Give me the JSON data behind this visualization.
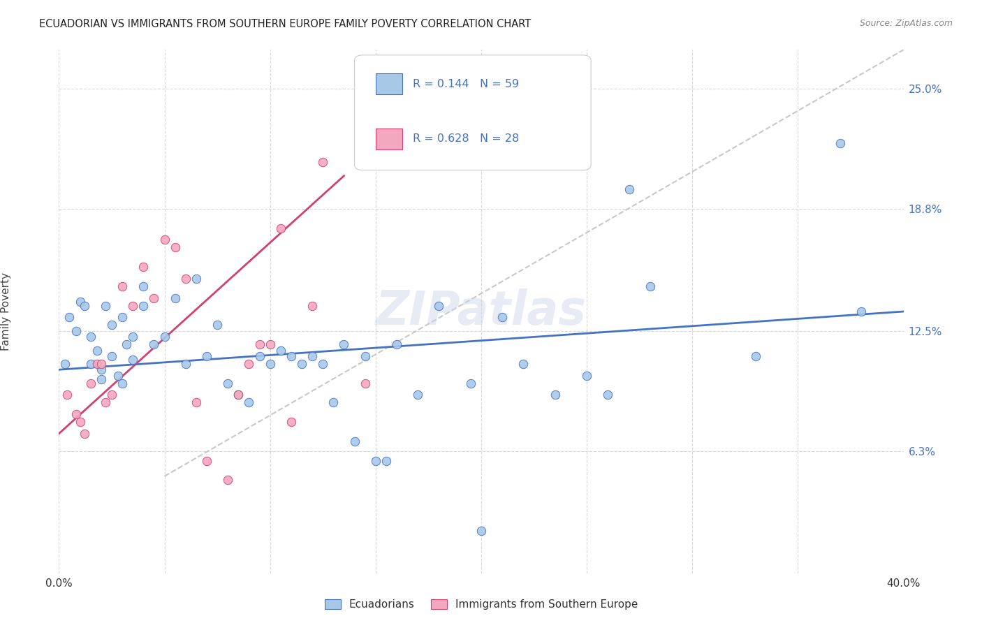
{
  "title": "ECUADORIAN VS IMMIGRANTS FROM SOUTHERN EUROPE FAMILY POVERTY CORRELATION CHART",
  "source": "Source: ZipAtlas.com",
  "ylabel": "Family Poverty",
  "yticks": [
    6.3,
    12.5,
    18.8,
    25.0
  ],
  "ytick_labels": [
    "6.3%",
    "12.5%",
    "18.8%",
    "25.0%"
  ],
  "xmin": 0.0,
  "xmax": 40.0,
  "ymin": 0.0,
  "ymax": 27.0,
  "legend1_R": "0.144",
  "legend1_N": "59",
  "legend2_R": "0.628",
  "legend2_N": "28",
  "legend1_label": "Ecuadorians",
  "legend2_label": "Immigrants from Southern Europe",
  "color_blue": "#a8c8e8",
  "color_pink": "#f4a8c0",
  "color_blue_text": "#4472c4",
  "line_blue": "#4472c4",
  "line_pink": "#d04070",
  "line_diag": "#c8c8c8",
  "background": "#ffffff",
  "grid_color": "#d8d8d8",
  "blue_points_x": [
    0.3,
    0.5,
    0.8,
    1.0,
    1.2,
    1.5,
    1.5,
    1.8,
    2.0,
    2.0,
    2.2,
    2.5,
    2.5,
    2.8,
    3.0,
    3.0,
    3.2,
    3.5,
    3.5,
    4.0,
    4.0,
    4.5,
    5.0,
    5.5,
    6.0,
    6.5,
    7.0,
    7.5,
    8.0,
    8.5,
    9.0,
    9.5,
    10.0,
    10.5,
    11.0,
    11.5,
    12.0,
    12.5,
    13.0,
    13.5,
    14.0,
    14.5,
    15.0,
    15.5,
    16.0,
    17.0,
    18.0,
    19.5,
    20.0,
    21.0,
    22.0,
    23.5,
    25.0,
    26.0,
    27.0,
    28.0,
    33.0,
    37.0,
    38.0
  ],
  "blue_points_y": [
    10.8,
    13.2,
    12.5,
    14.0,
    13.8,
    12.2,
    10.8,
    11.5,
    10.5,
    10.0,
    13.8,
    12.8,
    11.2,
    10.2,
    9.8,
    13.2,
    11.8,
    12.2,
    11.0,
    14.8,
    13.8,
    11.8,
    12.2,
    14.2,
    10.8,
    15.2,
    11.2,
    12.8,
    9.8,
    9.2,
    8.8,
    11.2,
    10.8,
    11.5,
    11.2,
    10.8,
    11.2,
    10.8,
    8.8,
    11.8,
    6.8,
    11.2,
    5.8,
    5.8,
    11.8,
    9.2,
    13.8,
    9.8,
    2.2,
    13.2,
    10.8,
    9.2,
    10.2,
    9.2,
    19.8,
    14.8,
    11.2,
    22.2,
    13.5
  ],
  "pink_points_x": [
    0.4,
    0.8,
    1.0,
    1.2,
    1.5,
    1.8,
    2.0,
    2.2,
    2.5,
    3.0,
    3.5,
    4.0,
    4.5,
    5.0,
    5.5,
    6.0,
    6.5,
    7.0,
    8.0,
    8.5,
    9.0,
    9.5,
    10.0,
    10.5,
    11.0,
    12.0,
    12.5,
    14.5
  ],
  "pink_points_y": [
    9.2,
    8.2,
    7.8,
    7.2,
    9.8,
    10.8,
    10.8,
    8.8,
    9.2,
    14.8,
    13.8,
    15.8,
    14.2,
    17.2,
    16.8,
    15.2,
    8.8,
    5.8,
    4.8,
    9.2,
    10.8,
    11.8,
    11.8,
    17.8,
    7.8,
    13.8,
    21.2,
    9.8
  ],
  "blue_line_x": [
    0.0,
    40.0
  ],
  "blue_line_y": [
    10.5,
    13.5
  ],
  "pink_line_x": [
    0.0,
    13.5
  ],
  "pink_line_y": [
    7.2,
    20.5
  ],
  "diag_line_x": [
    5.0,
    40.0
  ],
  "diag_line_y": [
    5.0,
    27.0
  ]
}
